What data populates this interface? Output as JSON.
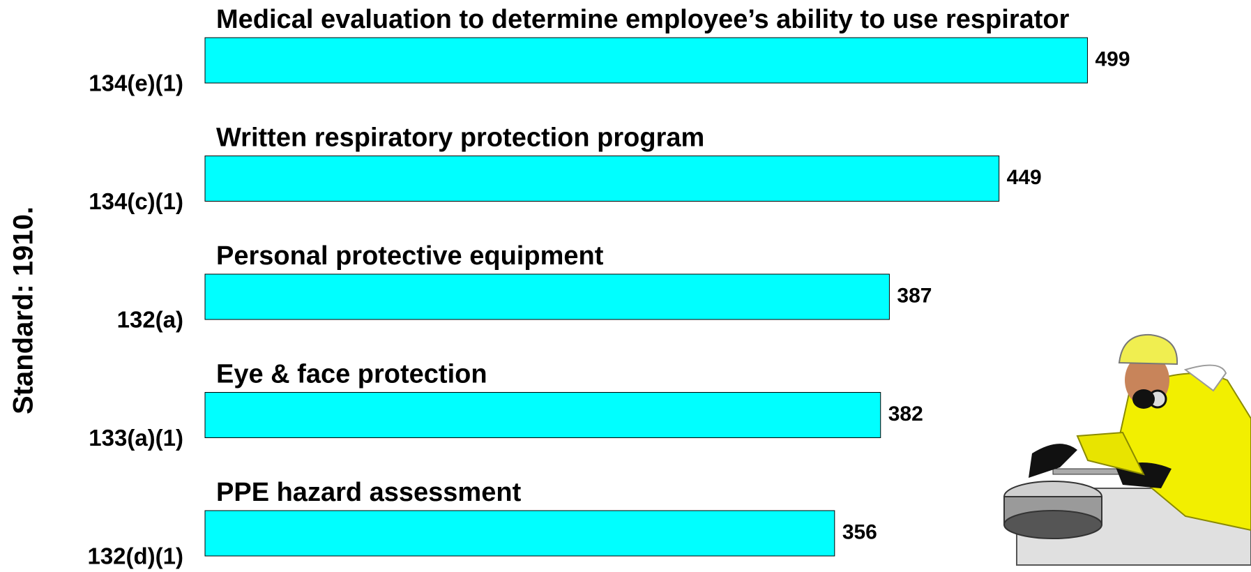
{
  "chart_data": {
    "type": "barh",
    "ylabel": "Standard: 1910.",
    "categories": [
      "134(e)(1)",
      "134(c)(1)",
      "132(a)",
      "133(a)(1)",
      "132(d)(1)"
    ],
    "annotations": [
      "Medical evaluation to determine employee’s ability to use respirator",
      "Written respiratory protection program",
      "Personal protective equipment",
      "Eye & face protection",
      "PPE hazard assessment"
    ],
    "values": [
      499,
      449,
      387,
      382,
      356
    ],
    "color": "#00ffff"
  }
}
